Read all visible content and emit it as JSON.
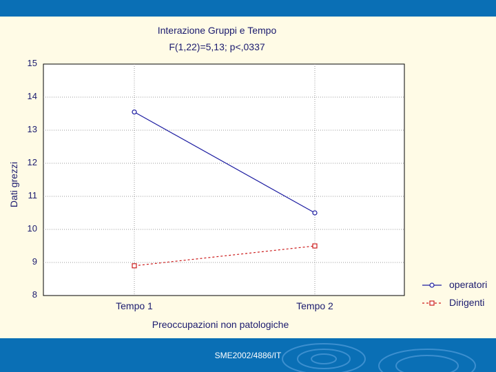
{
  "footer": {
    "text": "SME2002/4886/IT"
  },
  "chart_data": {
    "type": "line",
    "title": "Interazione Gruppi e Tempo",
    "subtitle": "F(1,22)=5,13; p<,0337",
    "xlabel": "Preoccupazioni non patologiche",
    "ylabel": "Dati grezzi",
    "categories": [
      "Tempo 1",
      "Tempo 2"
    ],
    "ylim": [
      8,
      15
    ],
    "yticks": [
      "15",
      "14",
      "13",
      "12",
      "11",
      "10",
      "9",
      "8"
    ],
    "grid": true,
    "legend_position": "bottom-right-outside",
    "series": [
      {
        "name": "operatori",
        "values": [
          13.55,
          10.5
        ],
        "color": "#1a1aa0",
        "marker": "circle",
        "dash": "solid"
      },
      {
        "name": "Dirigenti",
        "values": [
          8.9,
          9.5
        ],
        "color": "#cc1a1a",
        "marker": "square",
        "dash": "dashed"
      }
    ]
  }
}
